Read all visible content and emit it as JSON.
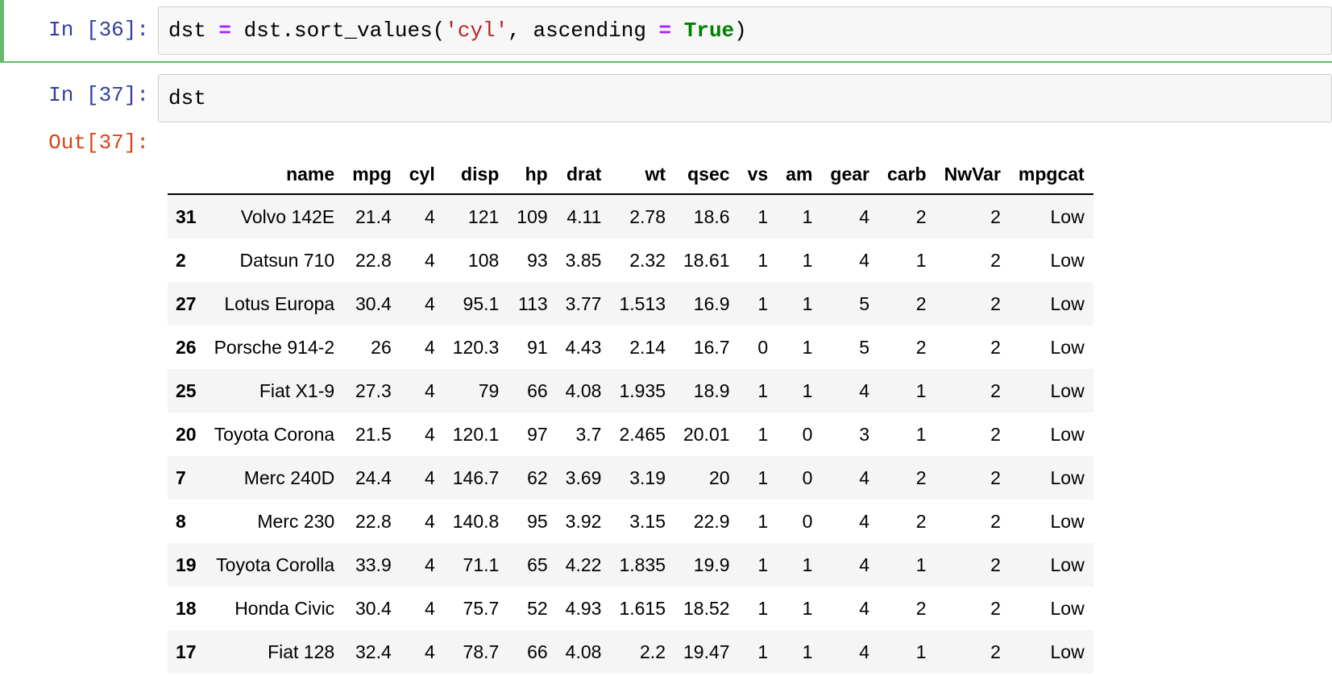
{
  "cells": [
    {
      "prompt": "In [36]:",
      "code": {
        "t1": "dst ",
        "op1": "=",
        "t2": " dst.sort_values(",
        "s1": "'cyl'",
        "t3": ", ascending ",
        "op2": "=",
        "t4": " ",
        "kw1": "True",
        "t5": ")"
      }
    },
    {
      "prompt": "In [37]:",
      "code": {
        "t1": "dst"
      },
      "out_prompt": "Out[37]:"
    }
  ],
  "table": {
    "columns": [
      "",
      "name",
      "mpg",
      "cyl",
      "disp",
      "hp",
      "drat",
      "wt",
      "qsec",
      "vs",
      "am",
      "gear",
      "carb",
      "NwVar",
      "mpgcat"
    ],
    "rows": [
      [
        "31",
        "Volvo 142E",
        "21.4",
        "4",
        "121",
        "109",
        "4.11",
        "2.78",
        "18.6",
        "1",
        "1",
        "4",
        "2",
        "2",
        "Low"
      ],
      [
        "2",
        "Datsun 710",
        "22.8",
        "4",
        "108",
        "93",
        "3.85",
        "2.32",
        "18.61",
        "1",
        "1",
        "4",
        "1",
        "2",
        "Low"
      ],
      [
        "27",
        "Lotus Europa",
        "30.4",
        "4",
        "95.1",
        "113",
        "3.77",
        "1.513",
        "16.9",
        "1",
        "1",
        "5",
        "2",
        "2",
        "Low"
      ],
      [
        "26",
        "Porsche 914-2",
        "26",
        "4",
        "120.3",
        "91",
        "4.43",
        "2.14",
        "16.7",
        "0",
        "1",
        "5",
        "2",
        "2",
        "Low"
      ],
      [
        "25",
        "Fiat X1-9",
        "27.3",
        "4",
        "79",
        "66",
        "4.08",
        "1.935",
        "18.9",
        "1",
        "1",
        "4",
        "1",
        "2",
        "Low"
      ],
      [
        "20",
        "Toyota Corona",
        "21.5",
        "4",
        "120.1",
        "97",
        "3.7",
        "2.465",
        "20.01",
        "1",
        "0",
        "3",
        "1",
        "2",
        "Low"
      ],
      [
        "7",
        "Merc 240D",
        "24.4",
        "4",
        "146.7",
        "62",
        "3.69",
        "3.19",
        "20",
        "1",
        "0",
        "4",
        "2",
        "2",
        "Low"
      ],
      [
        "8",
        "Merc 230",
        "22.8",
        "4",
        "140.8",
        "95",
        "3.92",
        "3.15",
        "22.9",
        "1",
        "0",
        "4",
        "2",
        "2",
        "Low"
      ],
      [
        "19",
        "Toyota Corolla",
        "33.9",
        "4",
        "71.1",
        "65",
        "4.22",
        "1.835",
        "19.9",
        "1",
        "1",
        "4",
        "1",
        "2",
        "Low"
      ],
      [
        "18",
        "Honda Civic",
        "30.4",
        "4",
        "75.7",
        "52",
        "4.93",
        "1.615",
        "18.52",
        "1",
        "1",
        "4",
        "2",
        "2",
        "Low"
      ],
      [
        "17",
        "Fiat 128",
        "32.4",
        "4",
        "78.7",
        "66",
        "4.08",
        "2.2",
        "19.47",
        "1",
        "1",
        "4",
        "1",
        "2",
        "Low"
      ]
    ]
  },
  "colors": {
    "selected_cell_border": "#66bb6a",
    "in_prompt": "#303f9f",
    "out_prompt": "#d84315",
    "operator": "#aa22ff",
    "string": "#ba2121",
    "keyword": "#008000"
  }
}
